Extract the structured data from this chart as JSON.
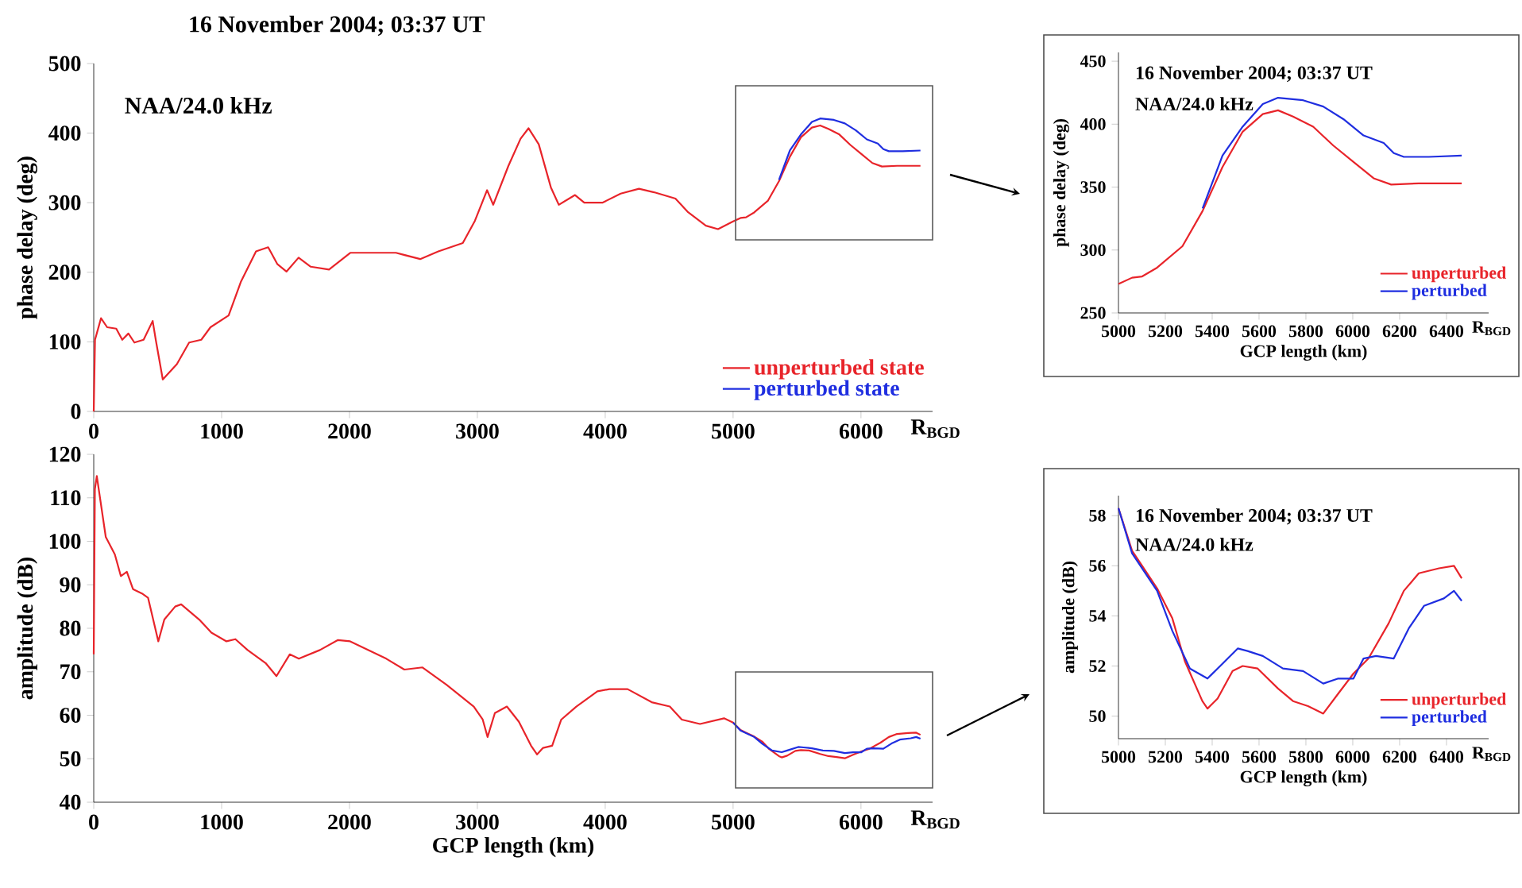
{
  "chart_data": [
    {
      "type": "line",
      "title": "16 November 2004; 03:37 UT",
      "annotations": [
        "NAA/24.0 kHz",
        "R$_{BGD}$"
      ],
      "ylabel": "phase delay (deg)",
      "xlim": [
        0,
        6560
      ],
      "xticks": [
        0,
        1000,
        2000,
        3000,
        4000,
        5000,
        6000
      ],
      "ylim": [
        0,
        500
      ],
      "yticks": [
        0,
        100,
        200,
        300,
        400,
        500
      ],
      "legend": "bottom right",
      "series": [
        {
          "name": "unperturbed state",
          "color": "#e8242a",
          "x": [
            0,
            10,
            57,
            105,
            176,
            223,
            271,
            318,
            390,
            461,
            485,
            540,
            650,
            746,
            841,
            913,
            1055,
            1150,
            1269,
            1364,
            1435,
            1507,
            1602,
            1697,
            1840,
            2006,
            2363,
            2553,
            2695,
            2886,
            2981,
            3076,
            3124,
            3243,
            3338,
            3400,
            3480,
            3575,
            3637,
            3764,
            3836,
            3978,
            4121,
            4264,
            4382,
            4549,
            4644,
            4787,
            4882,
            5000,
            5058,
            5101,
            5165,
            5273,
            5359,
            5444,
            5530,
            5616,
            5681,
            5745,
            5831,
            5917,
            6003,
            6089,
            6164,
            6282,
            6465
          ],
          "values": [
            0,
            103,
            134,
            121,
            119,
            103,
            112,
            99,
            103,
            130,
            103,
            46,
            68,
            99,
            103,
            121,
            138,
            186,
            230,
            236,
            212,
            201,
            221,
            208,
            204,
            228,
            228,
            219,
            230,
            242,
            274,
            318,
            297,
            353,
            392,
            407,
            384,
            322,
            297,
            311,
            300,
            300,
            313,
            320,
            315,
            306,
            287,
            267,
            262,
            273,
            278,
            279,
            286,
            303,
            331,
            366,
            394,
            408,
            411,
            406,
            398,
            383,
            370,
            357,
            352,
            353,
            353
          ]
        },
        {
          "name": "perturbed state",
          "color": "#1f2ee0",
          "x": [
            5359,
            5444,
            5530,
            5616,
            5681,
            5788,
            5874,
            5960,
            6046,
            6132,
            6175,
            6218,
            6325,
            6465
          ],
          "values": [
            333,
            375,
            398,
            416,
            421,
            419,
            414,
            404,
            391,
            385,
            377,
            374,
            374,
            375
          ]
        }
      ]
    },
    {
      "type": "line",
      "annotations": [
        "R$_{BGD}$"
      ],
      "xlabel": "GCP length (km)",
      "ylabel": "amplitude (dB)",
      "xlim": [
        0,
        6560
      ],
      "xticks": [
        0,
        1000,
        2000,
        3000,
        4000,
        5000,
        6000
      ],
      "ylim": [
        40,
        120
      ],
      "yticks": [
        40,
        50,
        60,
        70,
        80,
        90,
        100,
        110,
        120
      ],
      "series": [
        {
          "color": "#e8242a",
          "x": [
            0,
            9,
            24,
            94,
            165,
            212,
            259,
            307,
            377,
            425,
            481,
            505,
            552,
            637,
            684,
            825,
            920,
            1038,
            1108,
            1203,
            1344,
            1429,
            1533,
            1604,
            1769,
            1910,
            2005,
            2288,
            2429,
            2571,
            2759,
            2972,
            3042,
            3080,
            3137,
            3231,
            3325,
            3420,
            3467,
            3514,
            3585,
            3656,
            3774,
            3939,
            4033,
            4175,
            4363,
            4505,
            4599,
            4741,
            4929,
            5000,
            5058,
            5101,
            5165,
            5230,
            5283,
            5358,
            5380,
            5423,
            5487,
            5530,
            5594,
            5681,
            5745,
            5809,
            5852,
            5874,
            5938,
            6003,
            6067,
            6153,
            6218,
            6282,
            6368,
            6432,
            6465
          ],
          "values": [
            74,
            112,
            115,
            101,
            97,
            92,
            93,
            89,
            88,
            87,
            80,
            77,
            82,
            85,
            85.5,
            82,
            79,
            77,
            77.5,
            75,
            72,
            69,
            74,
            73,
            75,
            77.3,
            77,
            73,
            70.5,
            71,
            67,
            62,
            59,
            55,
            60.5,
            62,
            58.5,
            53,
            51,
            52.5,
            53,
            59,
            62,
            65.5,
            66,
            66,
            63,
            62,
            59,
            58,
            59.3,
            58.3,
            56.6,
            56,
            55.1,
            53.9,
            52.2,
            50.6,
            50.3,
            50.7,
            51.8,
            52,
            51.9,
            51.1,
            50.6,
            50.4,
            50.2,
            50.1,
            50.9,
            51.7,
            52.3,
            53.7,
            55,
            55.7,
            55.9,
            56,
            55.5
          ]
        },
        {
          "color": "#1f2ee0",
          "x": [
            5000,
            5058,
            5165,
            5230,
            5305,
            5380,
            5423,
            5509,
            5551,
            5616,
            5702,
            5788,
            5874,
            5938,
            6003,
            6046,
            6099,
            6175,
            6239,
            6304,
            6389,
            6432,
            6465
          ],
          "values": [
            58.3,
            56.5,
            55,
            53.4,
            51.9,
            51.5,
            51.9,
            52.7,
            52.6,
            52.4,
            51.9,
            51.8,
            51.3,
            51.5,
            51.5,
            52.3,
            52.4,
            52.3,
            53.5,
            54.4,
            54.7,
            55,
            54.6
          ]
        }
      ]
    },
    {
      "type": "line",
      "annotations": [
        "16 November 2004; 03:37 UT",
        "NAA/24.0 kHz",
        "R$_{BGD}$"
      ],
      "xlabel": "GCP length (km)",
      "ylabel": "phase delay (deg)",
      "xlim": [
        5000,
        6580
      ],
      "xticks": [
        5000,
        5200,
        5400,
        5600,
        5800,
        6000,
        6200,
        6400
      ],
      "ylim": [
        250,
        457
      ],
      "yticks": [
        250,
        300,
        350,
        400,
        450
      ],
      "legend": "bottom right",
      "series": [
        {
          "name": "unperturbed",
          "color": "#e8242a",
          "x": [
            5000,
            5058,
            5101,
            5165,
            5273,
            5359,
            5444,
            5530,
            5616,
            5681,
            5745,
            5831,
            5917,
            6003,
            6089,
            6164,
            6282,
            6465
          ],
          "values": [
            273,
            278,
            279,
            286,
            303,
            331,
            366,
            394,
            408,
            411,
            406,
            398,
            383,
            370,
            357,
            352,
            353,
            353
          ]
        },
        {
          "name": "perturbed",
          "color": "#1f2ee0",
          "x": [
            5359,
            5444,
            5530,
            5616,
            5681,
            5788,
            5874,
            5960,
            6046,
            6132,
            6175,
            6218,
            6325,
            6465
          ],
          "values": [
            333,
            375,
            398,
            416,
            421,
            419,
            414,
            404,
            391,
            385,
            377,
            374,
            374,
            375
          ]
        }
      ]
    },
    {
      "type": "line",
      "annotations": [
        "16 November 2004; 03:37 UT",
        "NAA/24.0 kHz",
        "R$_{BGD}$"
      ],
      "xlabel": "GCP length (km)",
      "ylabel": "amplitude (dB)",
      "xlim": [
        5000,
        6580
      ],
      "xticks": [
        5000,
        5200,
        5400,
        5600,
        5800,
        6000,
        6200,
        6400
      ],
      "ylim": [
        49.1,
        58.8
      ],
      "yticks": [
        50,
        52,
        54,
        56,
        58
      ],
      "legend": "bottom right",
      "series": [
        {
          "name": "unperturbed",
          "color": "#e8242a",
          "x": [
            5000,
            5058,
            5101,
            5165,
            5230,
            5283,
            5358,
            5380,
            5423,
            5487,
            5530,
            5594,
            5681,
            5745,
            5809,
            5852,
            5874,
            5938,
            6003,
            6067,
            6153,
            6218,
            6282,
            6368,
            6432,
            6465
          ],
          "values": [
            58.3,
            56.6,
            56,
            55.1,
            53.9,
            52.2,
            50.6,
            50.3,
            50.7,
            51.8,
            52,
            51.9,
            51.1,
            50.6,
            50.4,
            50.2,
            50.1,
            50.9,
            51.7,
            52.3,
            53.7,
            55,
            55.7,
            55.9,
            56,
            55.5
          ]
        },
        {
          "name": "perturbed",
          "color": "#1f2ee0",
          "x": [
            5000,
            5058,
            5165,
            5230,
            5305,
            5380,
            5423,
            5509,
            5551,
            5616,
            5702,
            5788,
            5874,
            5938,
            6003,
            6046,
            6099,
            6175,
            6239,
            6304,
            6389,
            6432,
            6465
          ],
          "values": [
            58.3,
            56.5,
            55,
            53.4,
            51.9,
            51.5,
            51.9,
            52.7,
            52.6,
            52.4,
            51.9,
            51.8,
            51.3,
            51.5,
            51.5,
            52.3,
            52.4,
            52.3,
            53.5,
            54.4,
            54.7,
            55,
            54.6
          ]
        }
      ]
    }
  ]
}
